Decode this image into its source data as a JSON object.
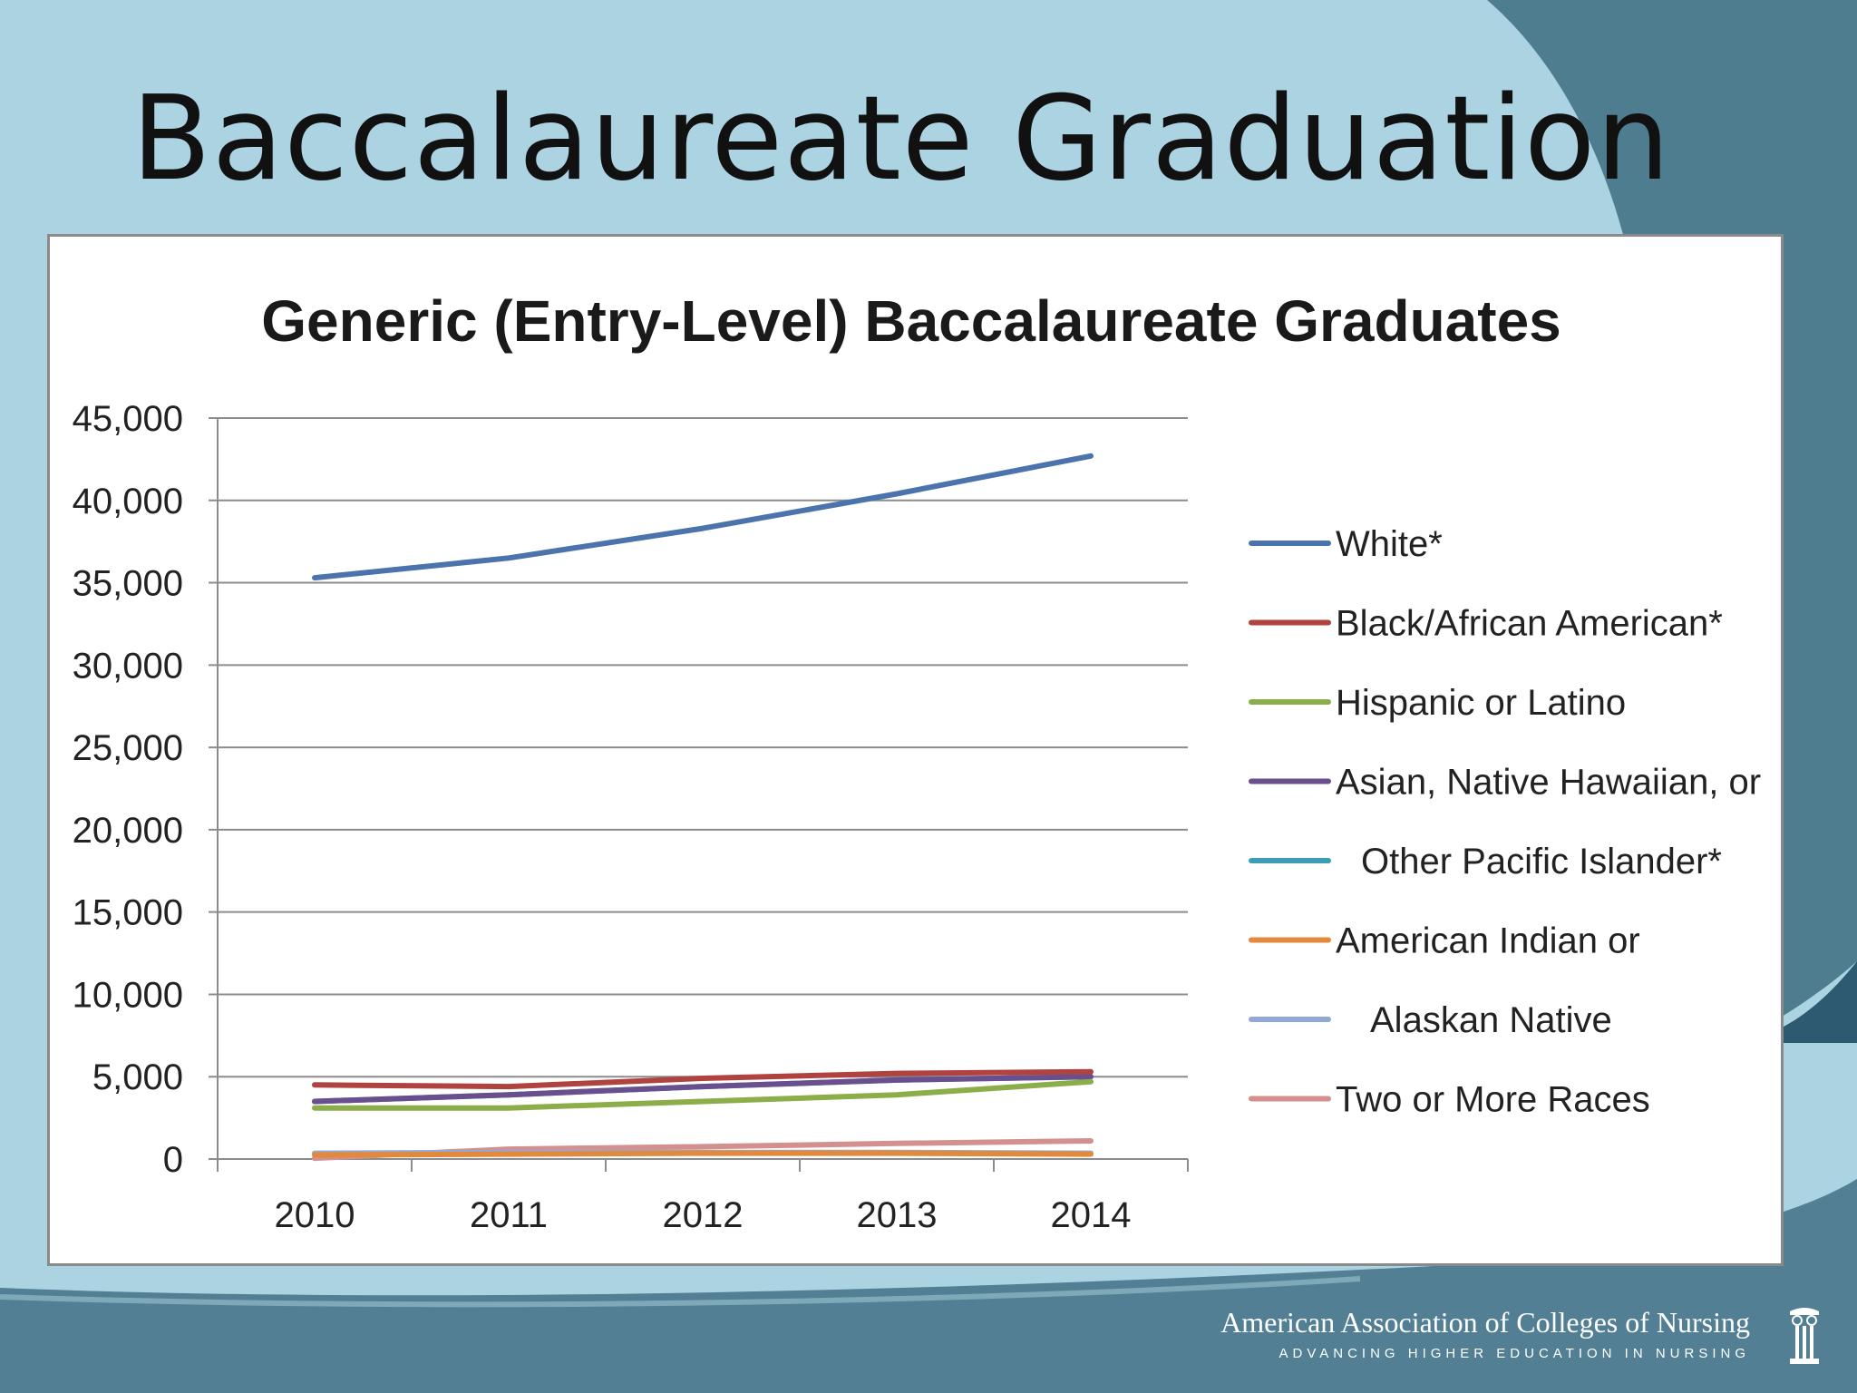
{
  "slide": {
    "title": "Baccalaureate Graduation",
    "organization": "American Association of Colleges of Nursing",
    "tagline": "ADVANCING HIGHER EDUCATION IN NURSING",
    "colors": {
      "background_light": "#acd3e2",
      "background_dark": "#4e7a8e",
      "title": "#111111"
    }
  },
  "chart_data": {
    "type": "line",
    "title": "Generic (Entry-Level) Baccalaureate Graduates",
    "xlabel": "",
    "ylabel": "",
    "categories": [
      "2010",
      "2011",
      "2012",
      "2013",
      "2014"
    ],
    "ylim": [
      0,
      45000
    ],
    "yticks": [
      "0",
      "5,000",
      "10,000",
      "15,000",
      "20,000",
      "25,000",
      "30,000",
      "35,000",
      "40,000",
      "45,000"
    ],
    "grid": "horizontal",
    "legend_position": "right",
    "series": [
      {
        "name": "White*",
        "color": "#4a74ab",
        "values": [
          35300,
          36500,
          38300,
          40400,
          42700
        ]
      },
      {
        "name": "Black/African American*",
        "color": "#b0433f",
        "values": [
          4500,
          4400,
          4900,
          5200,
          5300
        ]
      },
      {
        "name": "Hispanic or Latino",
        "color": "#8cae4a",
        "values": [
          3100,
          3100,
          3500,
          3900,
          4700
        ]
      },
      {
        "name": "Asian, Native Hawaiian, or Other Pacific Islander*",
        "color": "#6a4f8f",
        "values": [
          3500,
          3900,
          4400,
          4800,
          5000
        ]
      },
      {
        "name": "",
        "color": "#3d9db4",
        "values": [
          3500,
          3900,
          4400,
          4800,
          5000
        ]
      },
      {
        "name": "American Indian or Alaskan Native",
        "color": "#e2893c",
        "values": [
          250,
          300,
          350,
          350,
          300
        ]
      },
      {
        "name": "",
        "color": "#92a8d6",
        "values": [
          350,
          400,
          400,
          400,
          350
        ]
      },
      {
        "name": "Two or More Races",
        "color": "#d4908f",
        "values": [
          50,
          600,
          750,
          950,
          1100
        ]
      }
    ],
    "legend_entries": [
      {
        "label": "White*",
        "color": "#4a74ab"
      },
      {
        "label": "Black/African American*",
        "color": "#b0433f"
      },
      {
        "label": "Hispanic or Latino",
        "color": "#8cae4a"
      },
      {
        "label": "Asian, Native Hawaiian, or",
        "color": "#6a4f8f"
      },
      {
        "label": "Other Pacific Islander*",
        "color": "#3d9db4"
      },
      {
        "label": "American Indian or",
        "color": "#e2893c"
      },
      {
        "label": "Alaskan Native",
        "color": "#92a8d6"
      },
      {
        "label": "Two or More Races",
        "color": "#d4908f"
      }
    ]
  }
}
